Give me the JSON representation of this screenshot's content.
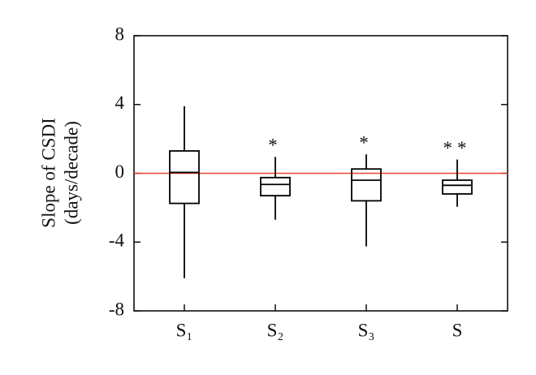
{
  "chart_data": {
    "type": "box",
    "ylabel": [
      "Slope of CSDI",
      "(days/decade)"
    ],
    "categories": [
      "S₁",
      "S₂",
      "S₃",
      "S"
    ],
    "whisker_low": [
      -6.1,
      -2.7,
      -4.25,
      -1.95
    ],
    "q1": [
      -1.75,
      -1.3,
      -1.6,
      -1.2
    ],
    "median": [
      0.05,
      -0.65,
      -0.4,
      -0.7
    ],
    "q3": [
      1.3,
      -0.25,
      0.25,
      -0.4
    ],
    "whisker_high": [
      3.9,
      0.95,
      1.1,
      0.8
    ],
    "annotations": [
      null,
      "*",
      "*",
      "**"
    ],
    "color": "#000000",
    "reference_line": {
      "value": 0,
      "color": "#e8442c"
    },
    "ylim": [
      -8,
      8
    ],
    "yticks": [
      -8,
      -4,
      0,
      4,
      8
    ]
  }
}
